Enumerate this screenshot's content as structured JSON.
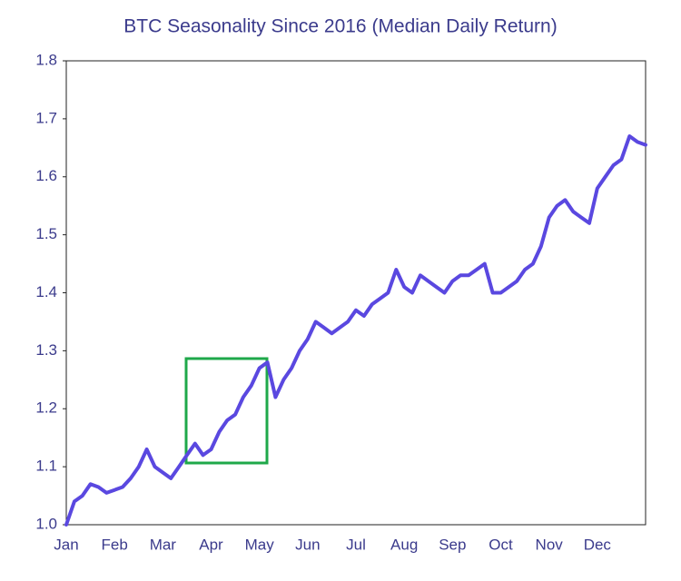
{
  "chart_data": {
    "type": "line",
    "title": "BTC Seasonality Since 2016 (Median Daily Return)",
    "categories": [
      "Jan",
      null,
      null,
      null,
      null,
      null,
      "Feb",
      null,
      null,
      null,
      null,
      null,
      "Mar",
      null,
      null,
      null,
      null,
      null,
      "Apr",
      null,
      null,
      null,
      null,
      null,
      "May",
      null,
      null,
      null,
      null,
      null,
      "Jun",
      null,
      null,
      null,
      null,
      null,
      "Jul",
      null,
      null,
      null,
      null,
      null,
      "Aug",
      null,
      null,
      null,
      null,
      null,
      "Sep",
      null,
      null,
      null,
      null,
      null,
      "Oct",
      null,
      null,
      null,
      null,
      null,
      "Nov",
      null,
      null,
      null,
      null,
      null,
      "Dec",
      null,
      null,
      null,
      null,
      null,
      null
    ],
    "values": [
      1.0,
      1.04,
      1.05,
      1.07,
      1.065,
      1.055,
      1.06,
      1.065,
      1.08,
      1.1,
      1.13,
      1.1,
      1.09,
      1.08,
      1.1,
      1.12,
      1.14,
      1.12,
      1.13,
      1.16,
      1.18,
      1.19,
      1.22,
      1.24,
      1.27,
      1.28,
      1.22,
      1.25,
      1.27,
      1.3,
      1.32,
      1.35,
      1.34,
      1.33,
      1.34,
      1.35,
      1.37,
      1.36,
      1.38,
      1.39,
      1.4,
      1.44,
      1.41,
      1.4,
      1.43,
      1.42,
      1.41,
      1.4,
      1.42,
      1.43,
      1.43,
      1.44,
      1.45,
      1.4,
      1.4,
      1.41,
      1.42,
      1.44,
      1.45,
      1.48,
      1.53,
      1.55,
      1.56,
      1.54,
      1.53,
      1.52,
      1.58,
      1.6,
      1.62,
      1.63,
      1.67,
      1.66,
      1.655
    ],
    "color": "#5a48e0",
    "ylim": [
      1.0,
      1.8
    ],
    "yticks": [
      {
        "value": 1.0,
        "label": "1.0"
      },
      1.1,
      1.2,
      1.3,
      1.4,
      1.5,
      1.6,
      1.7,
      1.8
    ],
    "grid": false
  }
}
